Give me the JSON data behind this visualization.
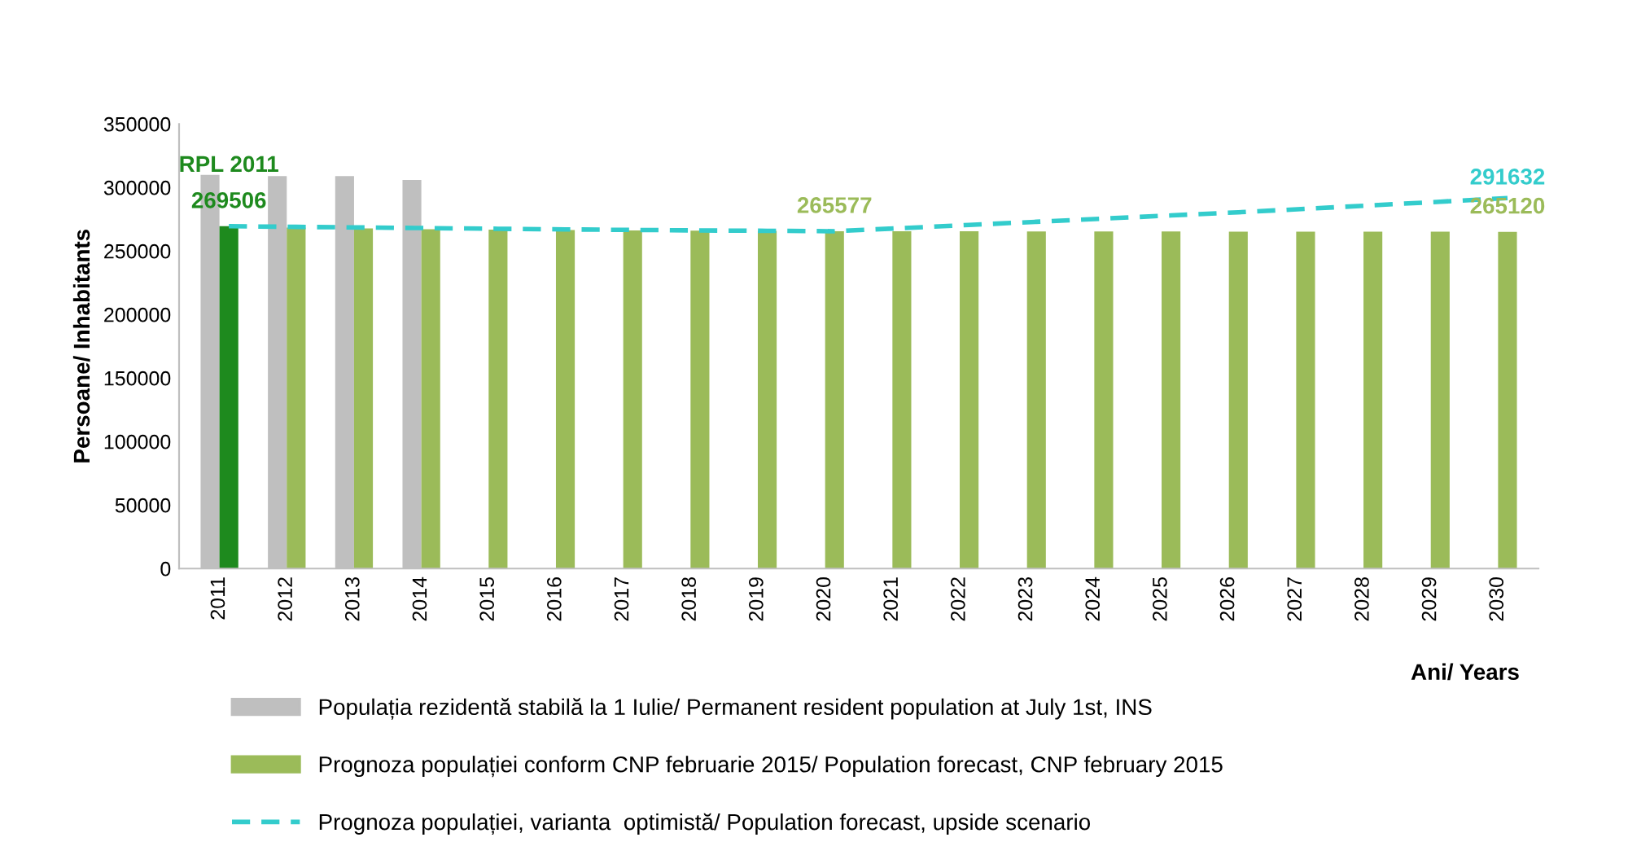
{
  "chart_data": {
    "type": "bar",
    "xlabel": "Ani/ Years",
    "ylabel": "Persoane/ Inhabitants",
    "categories": [
      "2011",
      "2012",
      "2013",
      "2014",
      "2015",
      "2016",
      "2017",
      "2018",
      "2019",
      "2020",
      "2021",
      "2022",
      "2023",
      "2024",
      "2025",
      "2026",
      "2027",
      "2028",
      "2029",
      "2030"
    ],
    "series": [
      {
        "name": "Populația rezidentă stabilă la 1 Iulie/ Permanent resident population at July 1st, INS",
        "color": "#bfbfbf",
        "values": [
          310000,
          309000,
          309000,
          306000,
          null,
          null,
          null,
          null,
          null,
          null,
          null,
          null,
          null,
          null,
          null,
          null,
          null,
          null,
          null,
          null
        ]
      },
      {
        "name": "Prognoza populației conform CNP februarie 2015/ Population forecast, CNP february 2015",
        "color": "#9bbb59",
        "colors": [
          "#1e8a1e",
          "#9bbb59",
          "#9bbb59",
          "#9bbb59",
          "#9bbb59",
          "#9bbb59",
          "#9bbb59",
          "#9bbb59",
          "#9bbb59",
          "#9bbb59",
          "#9bbb59",
          "#9bbb59",
          "#9bbb59",
          "#9bbb59",
          "#9bbb59",
          "#9bbb59",
          "#9bbb59",
          "#9bbb59",
          "#9bbb59",
          "#9bbb59"
        ],
        "values": [
          269506,
          268500,
          267800,
          267200,
          266800,
          266500,
          266200,
          266000,
          265800,
          265577,
          265550,
          265500,
          265450,
          265400,
          265350,
          265300,
          265250,
          265200,
          265150,
          265120
        ],
        "value_labels": [
          "269506",
          null,
          null,
          null,
          null,
          null,
          null,
          null,
          null,
          "265577",
          null,
          null,
          null,
          null,
          null,
          null,
          null,
          null,
          null,
          "265120"
        ]
      },
      {
        "name": "Prognoza populației, varianta  optimistă/ Population forecast, upside scenario",
        "type": "line",
        "line_style": "dashed",
        "color": "#33cccc",
        "values": [
          269506,
          269000,
          268500,
          268000,
          267500,
          267000,
          266600,
          266200,
          265900,
          265577,
          268000,
          270500,
          273000,
          275500,
          278000,
          280500,
          283200,
          286000,
          288800,
          291632
        ],
        "value_labels": [
          null,
          null,
          null,
          null,
          null,
          null,
          null,
          null,
          null,
          null,
          null,
          null,
          null,
          null,
          null,
          null,
          null,
          null,
          null,
          "291632"
        ]
      }
    ],
    "annotations": [
      {
        "text": "RPL 2011",
        "x": "2011",
        "y": 269506
      }
    ],
    "ylim": [
      0,
      350000
    ],
    "yticks": [
      0,
      50000,
      100000,
      150000,
      200000,
      250000,
      300000,
      350000
    ],
    "grid": false,
    "legend": "bottom"
  }
}
